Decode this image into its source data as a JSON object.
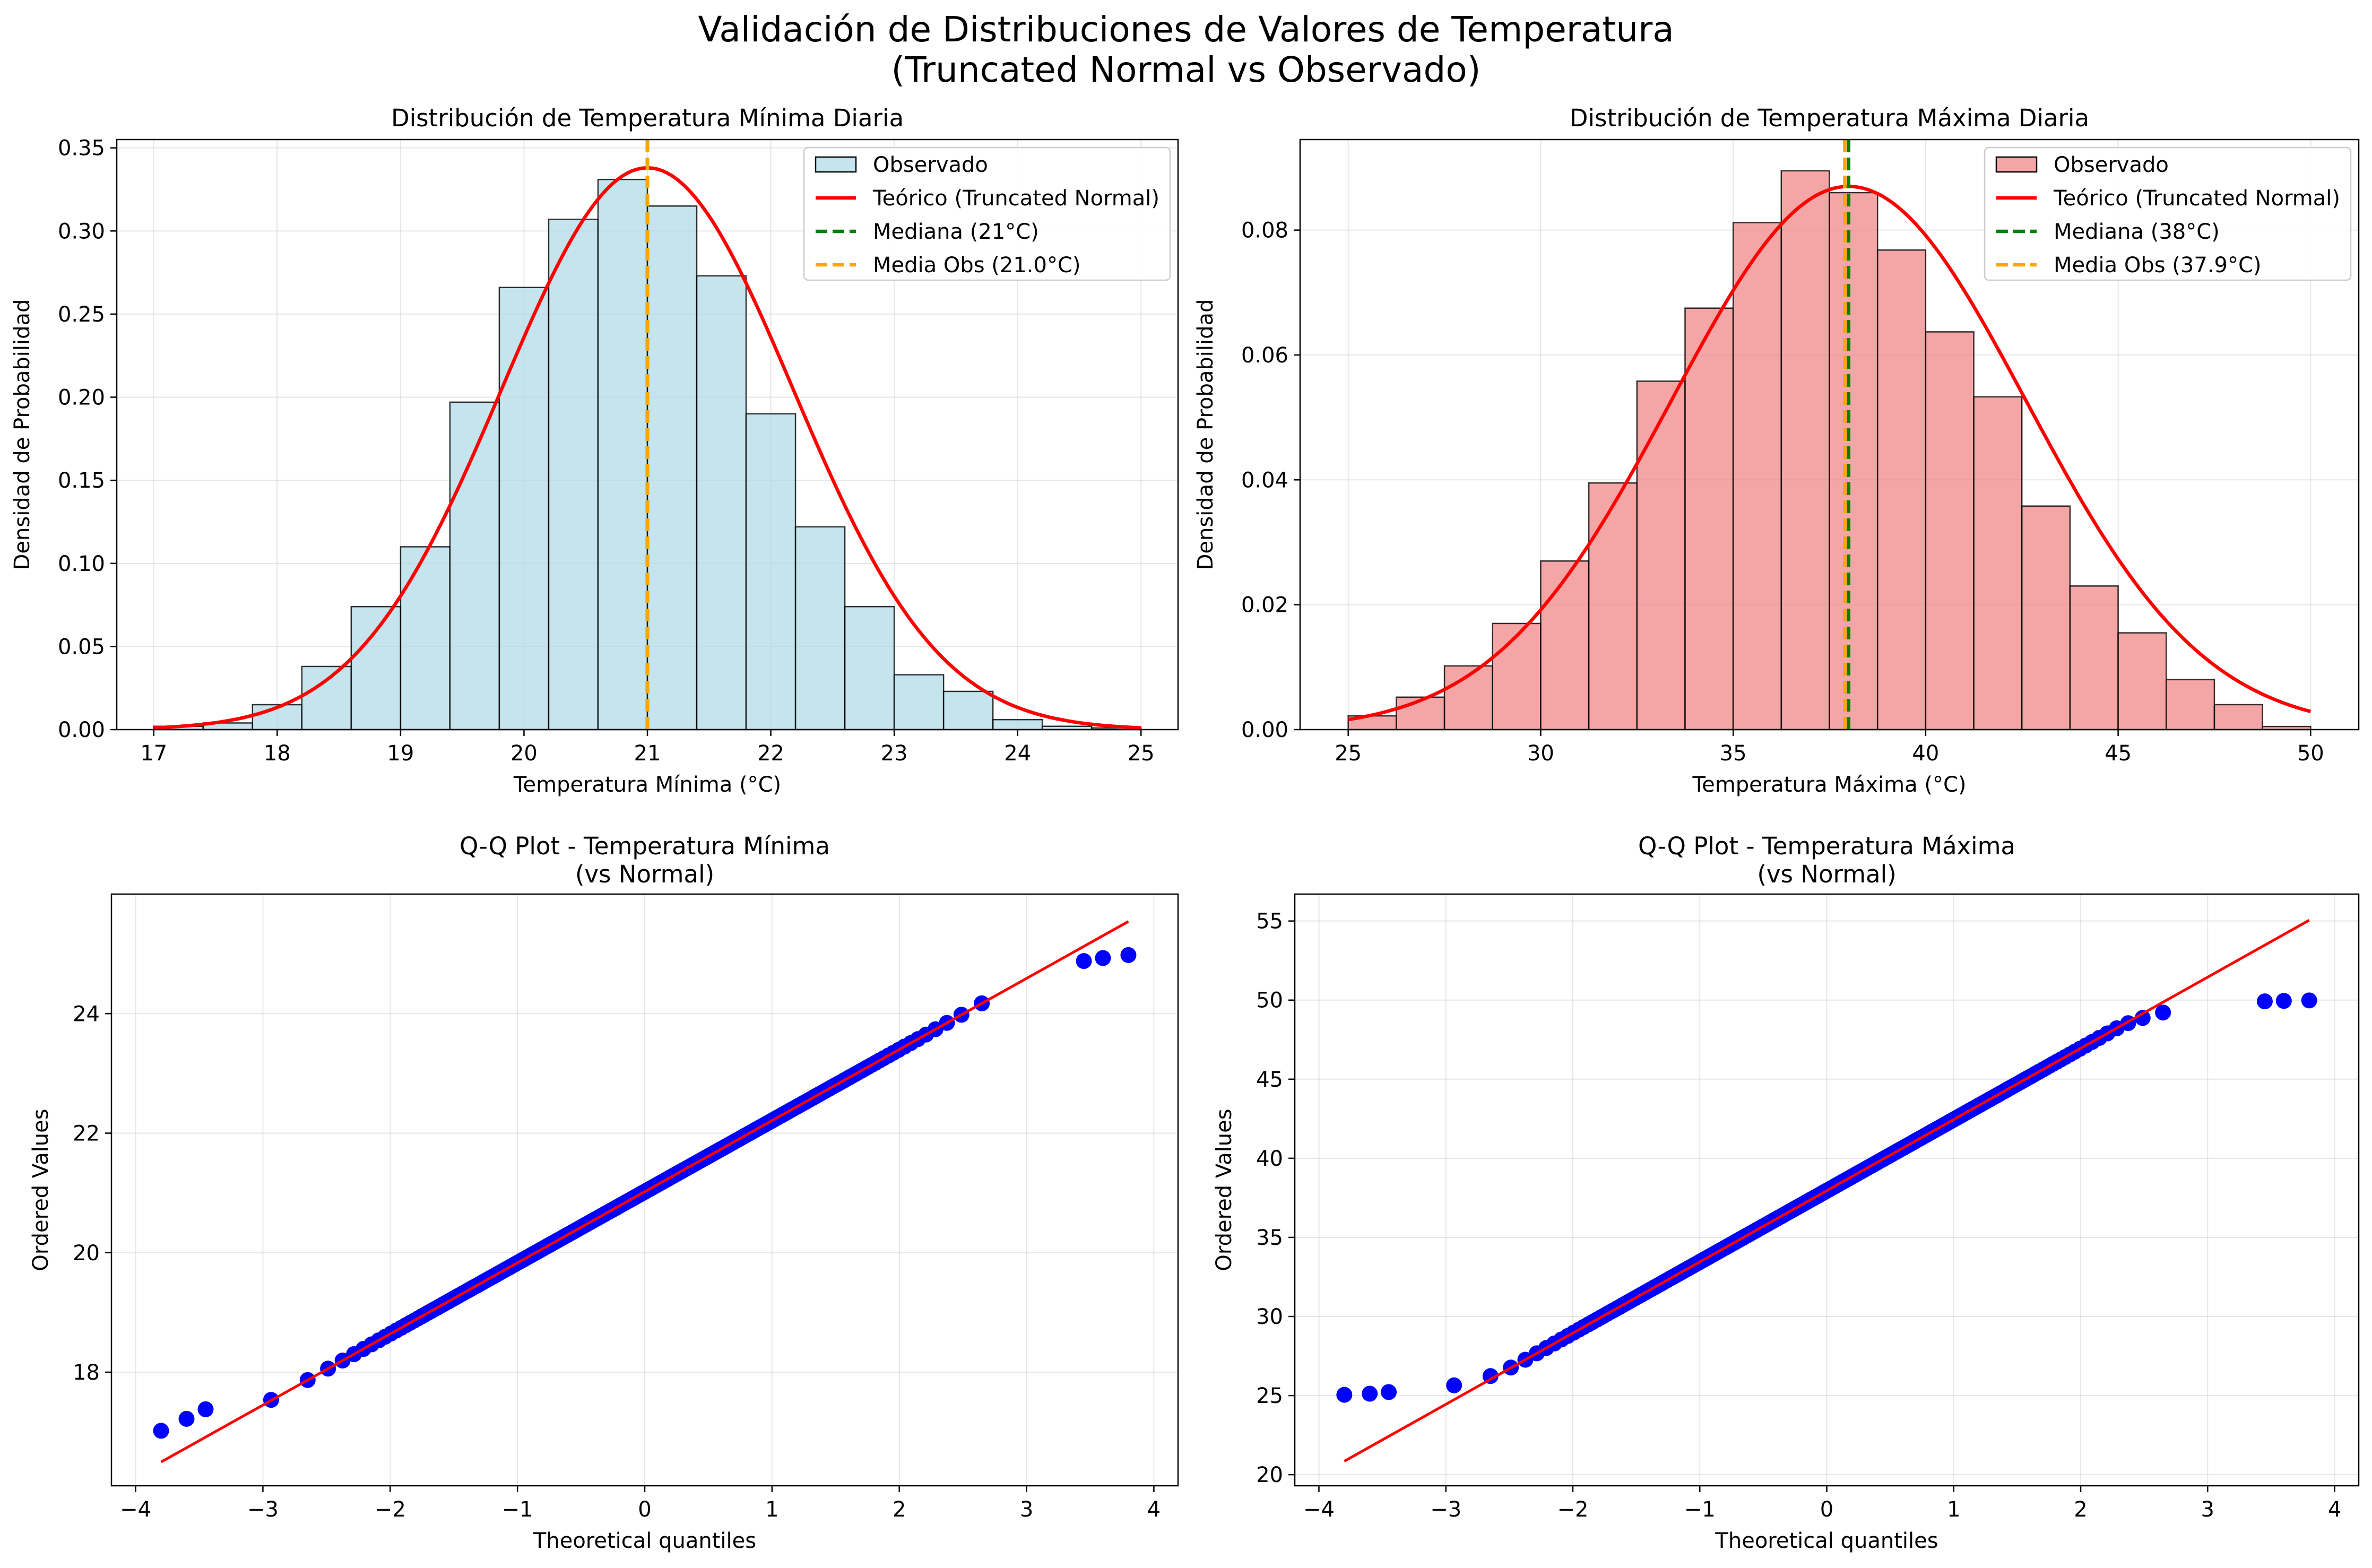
{
  "figure": {
    "title_line1": "Validación de Distribuciones de Valores de Temperatura",
    "title_line2": "(Truncated Normal vs Observado)"
  },
  "chart_data": [
    {
      "type": "bar",
      "title": "Distribución de Temperatura Mínima Diaria",
      "xlabel": "Temperatura Mínima (°C)",
      "ylabel": "Densidad de Probabilidad",
      "xlim": [
        16.7,
        25.3
      ],
      "ylim": [
        0,
        0.355
      ],
      "xticks": [
        17,
        18,
        19,
        20,
        21,
        22,
        23,
        24,
        25
      ],
      "yticks": [
        0.0,
        0.05,
        0.1,
        0.15,
        0.2,
        0.25,
        0.3,
        0.35
      ],
      "ytick_labels": [
        "0.00",
        "0.05",
        "0.10",
        "0.15",
        "0.20",
        "0.25",
        "0.30",
        "0.35"
      ],
      "grid": true,
      "legend_position": "top-right",
      "bin_edges": [
        17.0,
        17.4,
        17.8,
        18.2,
        18.6,
        19.0,
        19.4,
        19.8,
        20.2,
        20.6,
        21.0,
        21.4,
        21.8,
        22.2,
        22.6,
        23.0,
        23.4,
        23.8,
        24.2,
        24.6,
        25.0
      ],
      "density": [
        0.002,
        0.004,
        0.015,
        0.038,
        0.074,
        0.11,
        0.197,
        0.266,
        0.307,
        0.331,
        0.315,
        0.273,
        0.19,
        0.122,
        0.074,
        0.033,
        0.023,
        0.006,
        0.002,
        0.001
      ],
      "theoretical": {
        "mu": 21.0,
        "sigma": 1.18,
        "peak": 0.338,
        "range": [
          17.0,
          25.0
        ]
      },
      "median": 21.0,
      "mean_obs": 21.0,
      "hist_color": "#add8e6",
      "legend": [
        "Observado",
        "Teórico (Truncated Normal)",
        "Mediana (21°C)",
        "Media Obs (21.0°C)"
      ]
    },
    {
      "type": "bar",
      "title": "Distribución de Temperatura Máxima Diaria",
      "xlabel": "Temperatura Máxima (°C)",
      "ylabel": "Densidad de Probabilidad",
      "xlim": [
        23.75,
        51.25
      ],
      "ylim": [
        0,
        0.0945
      ],
      "xticks": [
        25,
        30,
        35,
        40,
        45,
        50
      ],
      "yticks": [
        0.0,
        0.02,
        0.04,
        0.06,
        0.08
      ],
      "ytick_labels": [
        "0.00",
        "0.02",
        "0.04",
        "0.06",
        "0.08"
      ],
      "grid": true,
      "legend_position": "top-right",
      "bin_edges": [
        25.0,
        26.25,
        27.5,
        28.75,
        30.0,
        31.25,
        32.5,
        33.75,
        35.0,
        36.25,
        37.5,
        38.75,
        40.0,
        41.25,
        42.5,
        43.75,
        45.0,
        46.25,
        47.5,
        48.75,
        50.0
      ],
      "density": [
        0.0022,
        0.0052,
        0.0102,
        0.017,
        0.027,
        0.0395,
        0.0558,
        0.0675,
        0.0812,
        0.0895,
        0.086,
        0.0768,
        0.0637,
        0.0533,
        0.0358,
        0.023,
        0.0155,
        0.008,
        0.004,
        0.0005
      ],
      "theoretical": {
        "mu": 38.0,
        "sigma": 4.6,
        "peak": 0.087,
        "range": [
          25.0,
          50.0
        ]
      },
      "median": 38.0,
      "mean_obs": 37.9,
      "hist_color": "#f08080",
      "legend": [
        "Observado",
        "Teórico (Truncated Normal)",
        "Mediana (38°C)",
        "Media Obs (37.9°C)"
      ]
    },
    {
      "type": "scatter",
      "title_line1": "Q-Q Plot - Temperatura Mínima",
      "title_line2": "(vs Normal)",
      "xlabel": "Theoretical quantiles",
      "ylabel": "Ordered Values",
      "xlim": [
        -4.19,
        4.19
      ],
      "ylim": [
        16.1,
        26.0
      ],
      "xticks": [
        -4,
        -3,
        -2,
        -1,
        0,
        1,
        2,
        3,
        4
      ],
      "yticks": [
        18,
        20,
        22,
        24
      ],
      "grid": true,
      "fit_line": {
        "slope": 1.19,
        "intercept": 21.02,
        "range": [
          -3.8,
          3.8
        ]
      },
      "quantile_range": [
        -3.8,
        3.8
      ],
      "clip": [
        17.0,
        25.0
      ],
      "outlier_points": [
        [
          -3.8,
          17.02
        ],
        [
          -3.6,
          17.22
        ],
        [
          -3.45,
          17.38
        ],
        [
          3.45,
          24.88
        ],
        [
          3.6,
          24.93
        ],
        [
          3.8,
          24.98
        ]
      ],
      "point_color": "#0000ff",
      "line_color": "#ff0000"
    },
    {
      "type": "scatter",
      "title_line1": "Q-Q Plot - Temperatura Máxima",
      "title_line2": "(vs Normal)",
      "xlabel": "Theoretical quantiles",
      "ylabel": "Ordered Values",
      "xlim": [
        -4.19,
        4.19
      ],
      "ylim": [
        19.3,
        56.7
      ],
      "xticks": [
        -4,
        -3,
        -2,
        -1,
        0,
        1,
        2,
        3,
        4
      ],
      "yticks": [
        20,
        25,
        30,
        35,
        40,
        45,
        50,
        55
      ],
      "grid": true,
      "fit_line": {
        "slope": 4.5,
        "intercept": 37.95,
        "range": [
          -3.8,
          3.8
        ]
      },
      "quantile_range": [
        -3.8,
        3.8
      ],
      "clip": [
        25.0,
        50.0
      ],
      "outlier_points": [
        [
          -3.8,
          25.05
        ],
        [
          -3.6,
          25.12
        ],
        [
          -3.45,
          25.22
        ],
        [
          3.45,
          49.92
        ],
        [
          3.6,
          49.95
        ],
        [
          3.8,
          49.98
        ]
      ],
      "point_color": "#0000ff",
      "line_color": "#ff0000"
    }
  ]
}
